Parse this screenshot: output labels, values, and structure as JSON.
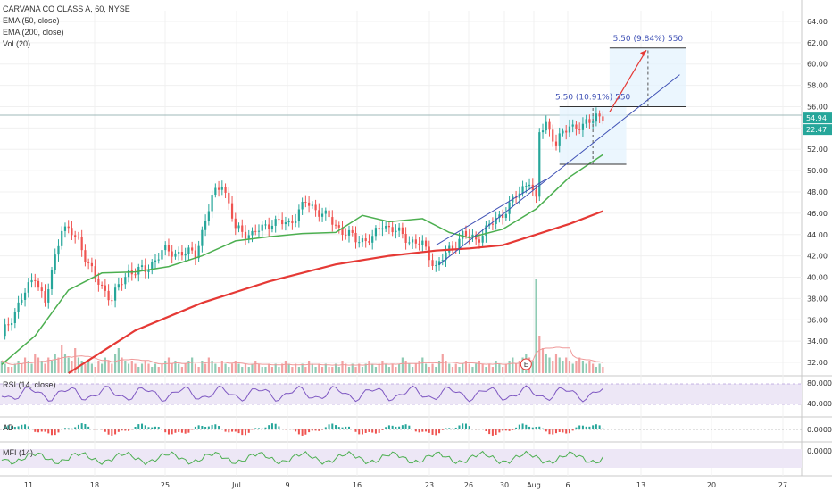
{
  "chart_data": {
    "type": "candlestick",
    "title": "CARVANA CO CLASS A, 60, NYSE",
    "indicators": [
      "EMA (50, close)",
      "EMA (200, close)",
      "Vol (20)"
    ],
    "x_ticks": [
      "11",
      "18",
      "25",
      "Jul",
      "9",
      "16",
      "23",
      "26",
      "30",
      "Aug",
      "6",
      "13",
      "20",
      "27"
    ],
    "y_ticks": [
      "32.00",
      "34.00",
      "36.00",
      "38.00",
      "40.00",
      "42.00",
      "44.00",
      "46.00",
      "48.00",
      "50.00",
      "52.00",
      "54.00",
      "56.00",
      "58.00",
      "60.00",
      "62.00",
      "64.00"
    ],
    "ylim": [
      31,
      65
    ],
    "price_path": [
      [
        0,
        34.5
      ],
      [
        5,
        37.4
      ],
      [
        10,
        40.2
      ],
      [
        13,
        37.5
      ],
      [
        18,
        44.8
      ],
      [
        23,
        43.5
      ],
      [
        28,
        39.8
      ],
      [
        33,
        38.0
      ],
      [
        38,
        40.6
      ],
      [
        43,
        40.6
      ],
      [
        48,
        42.4
      ],
      [
        53,
        42.3
      ],
      [
        58,
        42.2
      ],
      [
        63,
        47.4
      ],
      [
        66,
        49.0
      ],
      [
        70,
        44.5
      ],
      [
        75,
        44.0
      ],
      [
        81,
        45.2
      ],
      [
        86,
        45.0
      ],
      [
        91,
        47.0
      ],
      [
        96,
        46.0
      ],
      [
        101,
        44.6
      ],
      [
        106,
        43.5
      ],
      [
        111,
        43.6
      ],
      [
        114,
        45.0
      ],
      [
        117,
        44.5
      ],
      [
        122,
        43.5
      ],
      [
        126,
        43.0
      ],
      [
        130,
        41.0
      ],
      [
        134,
        42.5
      ],
      [
        138,
        44.0
      ],
      [
        142,
        43.5
      ],
      [
        146,
        44.8
      ],
      [
        150,
        46.0
      ],
      [
        154,
        47.5
      ],
      [
        158,
        49.2
      ],
      [
        160,
        47.0
      ],
      [
        161,
        53.5
      ],
      [
        163,
        54.5
      ],
      [
        166,
        52.5
      ],
      [
        170,
        54.3
      ],
      [
        174,
        54.0
      ],
      [
        178,
        55.3
      ],
      [
        180,
        54.9
      ]
    ],
    "current_price": "54.94",
    "current_time_label": "22:47",
    "ema50_path": [
      [
        0,
        31.8
      ],
      [
        10,
        34.5
      ],
      [
        20,
        38.8
      ],
      [
        30,
        40.4
      ],
      [
        40,
        40.5
      ],
      [
        50,
        41.0
      ],
      [
        60,
        42.0
      ],
      [
        70,
        43.4
      ],
      [
        80,
        43.8
      ],
      [
        90,
        44.1
      ],
      [
        100,
        44.2
      ],
      [
        108,
        45.8
      ],
      [
        116,
        45.2
      ],
      [
        126,
        45.5
      ],
      [
        134,
        44.2
      ],
      [
        140,
        43.7
      ],
      [
        150,
        44.5
      ],
      [
        160,
        46.4
      ],
      [
        170,
        49.4
      ],
      [
        180,
        51.5
      ]
    ],
    "ema200_path": [
      [
        20,
        31.0
      ],
      [
        40,
        35.0
      ],
      [
        60,
        37.6
      ],
      [
        80,
        39.6
      ],
      [
        100,
        41.2
      ],
      [
        116,
        42.0
      ],
      [
        130,
        42.5
      ],
      [
        140,
        42.7
      ],
      [
        150,
        43.0
      ],
      [
        160,
        44.0
      ],
      [
        170,
        45.0
      ],
      [
        180,
        46.2
      ]
    ],
    "annotations": {
      "box_small": {
        "x0": 167,
        "x1": 187,
        "y0": 50.6,
        "y1": 56.0,
        "label": "5.50 (10.91%) 550"
      },
      "box_big": {
        "x0": 182,
        "x1": 205,
        "y0": 56.0,
        "y1": 61.5,
        "label": "5.50 (9.84%) 550"
      },
      "trend_lower": [
        [
          131,
          41.2
        ],
        [
          203,
          59.0
        ]
      ],
      "trend_upper": [
        [
          130,
          43.0
        ],
        [
          163,
          49.2
        ]
      ],
      "horizontal_line": 55.2,
      "arrow": [
        [
          182,
          55.5
        ],
        [
          193,
          61.3
        ]
      ],
      "earnings_badge": "E"
    },
    "volume": {
      "values": [
        4,
        3,
        2,
        2,
        3,
        4,
        3,
        5,
        4,
        3,
        6,
        5,
        4,
        3,
        5,
        4,
        6,
        5,
        9,
        6,
        5,
        4,
        8,
        5,
        4,
        3,
        4,
        3,
        2,
        4,
        3,
        5,
        4,
        3,
        6,
        8,
        5,
        4,
        3,
        4,
        3,
        2,
        3,
        4,
        3,
        2,
        3,
        2,
        3,
        4,
        5,
        3,
        4,
        3,
        2,
        3,
        4,
        5,
        3,
        2,
        4,
        3,
        5,
        4,
        3,
        2,
        4,
        3,
        2,
        3,
        4,
        3,
        2,
        3,
        2,
        3,
        4,
        3,
        2,
        2,
        3,
        2,
        3,
        2,
        3,
        4,
        3,
        2,
        3,
        2,
        3,
        2,
        4,
        3,
        2,
        3,
        2,
        3,
        2,
        2,
        3,
        2,
        4,
        3,
        2,
        3,
        2,
        3,
        2,
        3,
        4,
        3,
        2,
        3,
        4,
        3,
        2,
        3,
        2,
        3,
        5,
        4,
        3,
        2,
        3,
        4,
        5,
        3,
        2,
        3,
        2,
        4,
        6,
        4,
        3,
        2,
        3,
        2,
        3,
        4,
        3,
        2,
        3,
        4,
        3,
        2,
        3,
        2,
        4,
        3,
        2,
        3,
        4,
        5,
        3,
        4,
        5,
        6,
        5,
        4,
        30,
        12,
        8,
        6,
        5,
        4,
        6,
        5,
        4,
        5,
        4,
        3,
        4,
        5,
        4,
        3,
        4,
        3,
        2,
        3,
        2
      ],
      "up_color": "#8fcbb4",
      "down_color": "#f2a1a1"
    },
    "rsi": {
      "label": "RSI (14, close)",
      "ticks": [
        "80.0000",
        "40.0000"
      ]
    },
    "ad": {
      "label": "AD",
      "ticks": [
        "0.0000"
      ]
    },
    "mfi": {
      "label": "MFI (14)",
      "ticks": [
        "0.0000"
      ]
    }
  },
  "colors": {
    "up": "#26a69a",
    "down": "#ef5350",
    "ema50": "#4caf50",
    "ema200": "#e53935",
    "annotation": "#3f51b5",
    "axis_text": "#333333",
    "band_fill": "#ede7f6",
    "band_line": "#9575cd",
    "price_badge": "#26a69a"
  }
}
